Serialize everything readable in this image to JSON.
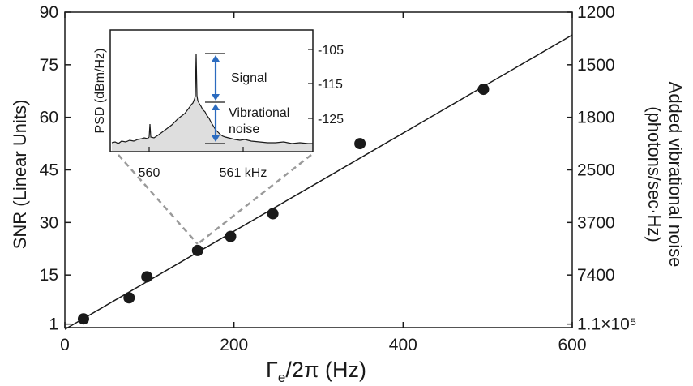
{
  "chart_data": {
    "type": "scatter",
    "xlabel": "Γ_e/2π (Hz)",
    "xlabel_main": "Γ",
    "xlabel_sub": "e",
    "xlabel_rest": "/2π (Hz)",
    "ylabel": "SNR (Linear Units)",
    "y2label_line1": "Added vibrational noise",
    "y2label_line2": "(photons/sec·Hz)",
    "xlim": [
      0,
      600
    ],
    "ylim": [
      0,
      90
    ],
    "x_ticks": [
      0,
      200,
      400,
      600
    ],
    "y_ticks": [
      1,
      15,
      30,
      45,
      60,
      75,
      90
    ],
    "y2_ticks": [
      {
        "label": "1200",
        "at_y": 90
      },
      {
        "label": "1500",
        "at_y": 75
      },
      {
        "label": "1800",
        "at_y": 60
      },
      {
        "label": "2500",
        "at_y": 45
      },
      {
        "label": "3700",
        "at_y": 30
      },
      {
        "label": "7400",
        "at_y": 15
      },
      {
        "label": "1.1×10⁵",
        "at_y": 1
      }
    ],
    "points": [
      {
        "x": 22,
        "y": 2.5
      },
      {
        "x": 76,
        "y": 8.5
      },
      {
        "x": 97,
        "y": 14.5
      },
      {
        "x": 157,
        "y": 22
      },
      {
        "x": 196,
        "y": 26
      },
      {
        "x": 246,
        "y": 32.5
      },
      {
        "x": 349,
        "y": 52.5
      },
      {
        "x": 495,
        "y": 68
      }
    ],
    "fit_line": {
      "slope": 0.14,
      "intercept": -0.5
    },
    "inset": {
      "ylabel": "PSD (dBm/Hz)",
      "x_ticks": [
        "560",
        "561 kHz"
      ],
      "y_ticks": [
        "-105",
        "-115",
        "-125"
      ],
      "annotations": [
        "Signal",
        "Vibrational",
        "noise"
      ]
    }
  },
  "colors": {
    "points": "#1a1a1a",
    "line": "#1a1a1a",
    "inset_fill": "#dedede",
    "arrows": "#2b6bbf",
    "dashes": "#9a9a9a"
  }
}
